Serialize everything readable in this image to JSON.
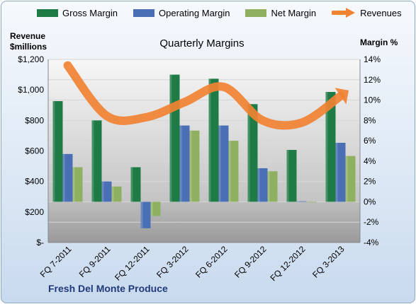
{
  "chart_data": {
    "type": "bar",
    "title": "Quarterly Margins",
    "left_axis_title": "Revenue $millions",
    "right_axis_title": "Margin %",
    "footer": "Fresh Del Monte Produce",
    "categories": [
      "FQ 7-2011",
      "FQ 9-2011",
      "FQ 12-2011",
      "FQ 3-2012",
      "FQ 6-2012",
      "FQ 9-2012",
      "FQ 12-2012",
      "FQ 3-2013"
    ],
    "left_axis": {
      "min": 0,
      "max": 1200,
      "ticks": [
        "$-",
        "$200",
        "$400",
        "$600",
        "$800",
        "$1,000",
        "$1,200"
      ]
    },
    "right_axis": {
      "min": -4,
      "max": 14,
      "ticks": [
        "-4%",
        "-2%",
        "0%",
        "2%",
        "4%",
        "6%",
        "8%",
        "10%",
        "12%",
        "14%"
      ]
    },
    "series": [
      {
        "name": "Gross Margin",
        "axis": "right",
        "type": "bar",
        "color": "#1e7b46",
        "values": [
          9.9,
          8.0,
          3.4,
          12.5,
          12.1,
          9.6,
          5.1,
          10.8
        ]
      },
      {
        "name": "Operating Margin",
        "axis": "right",
        "type": "bar",
        "color": "#4a6fb5",
        "values": [
          4.7,
          2.0,
          -2.6,
          7.5,
          7.5,
          3.3,
          0.05,
          5.8
        ]
      },
      {
        "name": "Net Margin",
        "axis": "right",
        "type": "bar",
        "color": "#8fb061",
        "values": [
          3.4,
          1.5,
          -1.4,
          7.0,
          6.0,
          3.0,
          0,
          4.5
        ]
      },
      {
        "name": "Revenues",
        "axis": "left",
        "type": "line",
        "color": "#f08232",
        "values": [
          1160,
          830,
          820,
          920,
          1020,
          800,
          785,
          960
        ]
      }
    ],
    "grid": true,
    "legend_position": "top"
  }
}
